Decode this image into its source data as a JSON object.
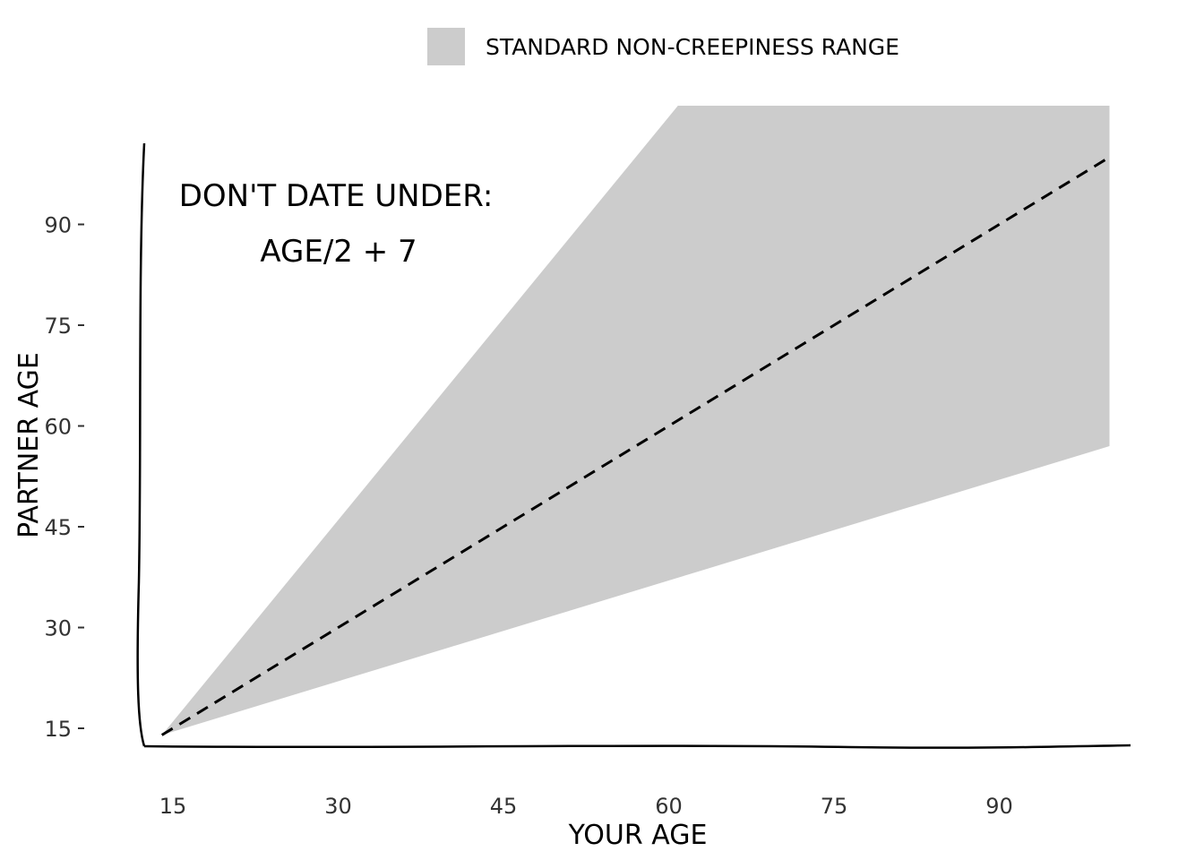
{
  "chart_data": {
    "type": "area",
    "xlabel": "YOUR AGE",
    "ylabel": "PARTNER AGE",
    "x_ticks": [
      15,
      30,
      45,
      60,
      75,
      90
    ],
    "y_ticks": [
      15,
      30,
      45,
      60,
      75,
      90
    ],
    "xlim": [
      12.5,
      105
    ],
    "ylim": [
      12.5,
      102
    ],
    "grid": false,
    "legend_position": "top-center",
    "legend": {
      "label": "STANDARD NON-CREEPINESS RANGE",
      "color": "#cccccc"
    },
    "annotation": [
      "DON'T DATE UNDER:",
      "AGE/2 + 7"
    ],
    "x": [
      14,
      20,
      25,
      30,
      35,
      40,
      45,
      50,
      55,
      60,
      65,
      70,
      75,
      80,
      85,
      90,
      95,
      100
    ],
    "range_lower": [
      14,
      17,
      19.5,
      22,
      24.5,
      27,
      29.5,
      32,
      34.5,
      37,
      39.5,
      42,
      44.5,
      47,
      49.5,
      52,
      54.5,
      57
    ],
    "range_upper": [
      14,
      26,
      36,
      46,
      56,
      66,
      76,
      86,
      96,
      106,
      116,
      126,
      136,
      146,
      156,
      166,
      176,
      186
    ],
    "series": [
      {
        "name": "",
        "style": "dashed",
        "color": "#000000",
        "values": [
          14,
          20,
          25,
          30,
          35,
          40,
          45,
          50,
          55,
          60,
          65,
          70,
          75,
          80,
          85,
          90,
          95,
          100
        ]
      }
    ],
    "colors": {
      "range_fill": "#cccccc",
      "line": "#000000",
      "axis": "#000000"
    }
  }
}
